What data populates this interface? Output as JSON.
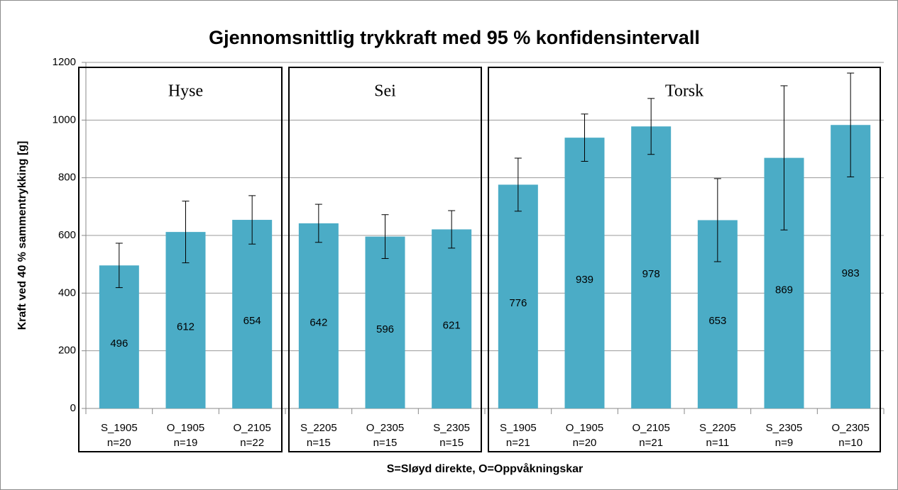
{
  "chart_data": {
    "type": "bar",
    "title": "Gjennomsnittlig trykkraft med 95 % konfidensintervall",
    "y_label": "Kraft ved 40 % sammentrykking [g]",
    "x_label": "S=Sløyd direkte, O=Oppvåkningskar",
    "color": "#4bacc6",
    "ylim": [
      0,
      1200
    ],
    "yticks": [
      0,
      200,
      400,
      600,
      800,
      1000,
      1200
    ],
    "grid": true,
    "groups": [
      {
        "label": "Hyse",
        "categories": [
          [
            "S_1905",
            "n=20"
          ],
          [
            "O_1905",
            "n=19"
          ],
          [
            "O_2105",
            "n=22"
          ]
        ],
        "values": [
          496,
          612,
          654
        ],
        "errors": [
          77,
          107,
          84
        ]
      },
      {
        "label": "Sei",
        "categories": [
          [
            "S_2205",
            "n=15"
          ],
          [
            "O_2305",
            "n=15"
          ],
          [
            "S_2305",
            "n=15"
          ]
        ],
        "values": [
          642,
          596,
          621
        ],
        "errors": [
          66,
          76,
          65
        ]
      },
      {
        "label": "Torsk",
        "categories": [
          [
            "S_1905",
            "n=21"
          ],
          [
            "O_1905",
            "n=20"
          ],
          [
            "O_2105",
            "n=21"
          ],
          [
            "S_2205",
            "n=11"
          ],
          [
            "S_2305",
            "n=9"
          ],
          [
            "O_2305",
            "n=10"
          ]
        ],
        "values": [
          776,
          939,
          978,
          653,
          869,
          983
        ],
        "errors": [
          92,
          82,
          97,
          144,
          250,
          180
        ]
      }
    ]
  }
}
